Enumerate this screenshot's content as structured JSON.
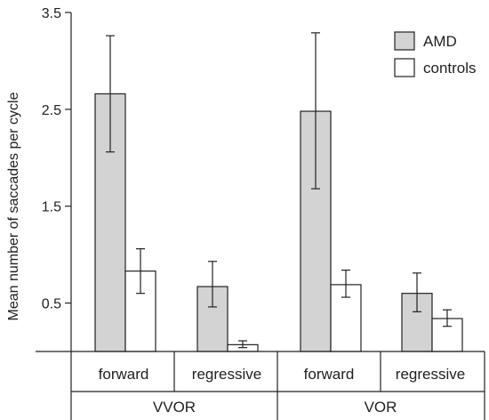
{
  "chart_data": {
    "type": "bar",
    "ylabel": "Mean number of saccades per cycle",
    "ylim": [
      0,
      3.5
    ],
    "yticks": [
      0.5,
      1.5,
      2.5,
      3.5
    ],
    "yticks_labels": [
      "0.5",
      "1.5",
      "2.5",
      "3.5"
    ],
    "groups": [
      {
        "label": "VVOR",
        "categories": [
          "forward",
          "regressive"
        ]
      },
      {
        "label": "VOR",
        "categories": [
          "forward",
          "regressive"
        ]
      }
    ],
    "categories": [
      "forward",
      "regressive",
      "forward",
      "regressive"
    ],
    "series": [
      {
        "name": "AMD",
        "color": "#d3d3d3",
        "values": [
          2.66,
          0.67,
          2.48,
          0.6
        ],
        "err_low": [
          2.06,
          0.46,
          1.68,
          0.41
        ],
        "err_high": [
          3.26,
          0.93,
          3.29,
          0.81
        ]
      },
      {
        "name": "controls",
        "color": "#ffffff",
        "values": [
          0.83,
          0.07,
          0.69,
          0.34
        ],
        "err_low": [
          0.6,
          0.04,
          0.56,
          0.26
        ],
        "err_high": [
          1.06,
          0.11,
          0.84,
          0.43
        ]
      }
    ],
    "legend_position": "top-right",
    "grid": false
  }
}
